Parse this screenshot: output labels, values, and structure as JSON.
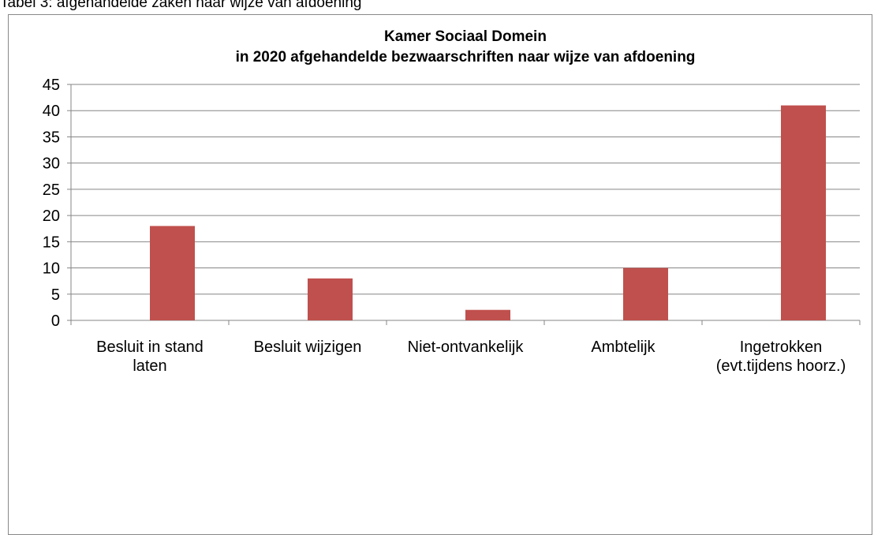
{
  "caption": "Tabel 3: afgehandelde zaken naar wijze van afdoening",
  "chart_data": {
    "type": "bar",
    "title": [
      "Kamer Sociaal Domein",
      "in 2020 afgehandelde bezwaarschriften naar wijze  van afdoening"
    ],
    "categories": [
      "Besluit in stand laten",
      "Besluit wijzigen",
      "Niet-ontvankelijk",
      "Ambtelijk",
      "Ingetrokken (evt.tijdens hoorz.)"
    ],
    "values": [
      18,
      8,
      2,
      10,
      41
    ],
    "color": "#c0504d",
    "ylim": [
      0,
      45
    ],
    "yticks": [
      0,
      5,
      10,
      15,
      20,
      25,
      30,
      35,
      40,
      45
    ],
    "grid": true
  }
}
